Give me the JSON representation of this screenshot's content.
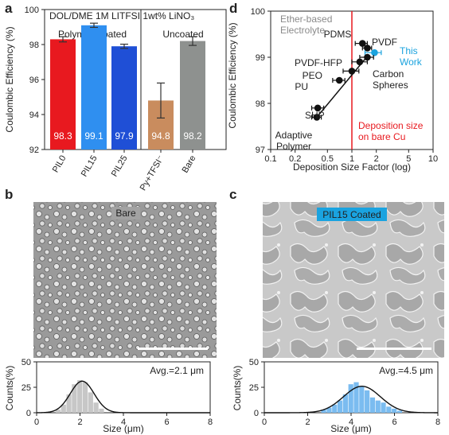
{
  "chart_data": [
    {
      "panel": "a",
      "type": "bar",
      "ylabel": "Coulombic Efficiency (%)",
      "ylim": [
        92,
        100
      ],
      "yticks": [
        92,
        94,
        96,
        98,
        100
      ],
      "header_left": "DOL/DME 1M LITFSI 1wt% LiNO₃",
      "group_left": "Polymer Coated",
      "group_right": "Uncoated",
      "categories": [
        "PIL0",
        "PIL15",
        "PIL25",
        "Py+TFSI⁻",
        "Bare"
      ],
      "values": [
        98.3,
        99.1,
        97.9,
        94.8,
        98.2
      ],
      "errors": [
        0.15,
        0.12,
        0.12,
        1.0,
        0.25
      ],
      "value_labels": [
        "98.3",
        "99.1",
        "97.9",
        "94.8",
        "98.2"
      ],
      "colors": [
        "#e8191f",
        "#2f8ff0",
        "#1f4fd6",
        "#c98c5e",
        "#8e918f"
      ]
    },
    {
      "panel": "d",
      "type": "scatter",
      "xlabel": "Deposition Size Factor (log)",
      "ylabel": "Coulombic Efficiency (%)",
      "xscale": "log",
      "xlim": [
        0.1,
        10
      ],
      "ylim": [
        97,
        100
      ],
      "xticks": [
        "0.1",
        "0.2",
        "0.5",
        "1",
        "2",
        "5",
        "10"
      ],
      "yticks": [
        97,
        98,
        99,
        100
      ],
      "top_note": "Ether-based Electrolyte",
      "vline_x": 1,
      "vline_note": "Deposition size on bare Cu",
      "points": [
        {
          "label": "PDMS",
          "x": 1.35,
          "y": 99.3,
          "xerr": [
            0.25,
            0.2
          ],
          "color": "#111111"
        },
        {
          "label": "PVDF",
          "x": 1.55,
          "y": 99.2,
          "xerr": [
            0.2,
            0.2
          ],
          "color": "#111111"
        },
        {
          "label": "This Work",
          "x": 1.9,
          "y": 99.1,
          "xerr": [
            0.45,
            0.4
          ],
          "color": "#1ba3de"
        },
        {
          "label": "Carbon Spheres",
          "x": 1.55,
          "y": 99.0,
          "xerr": [
            0.3,
            0.3
          ],
          "color": "#111111"
        },
        {
          "label": "PVDF-HFP",
          "x": 1.25,
          "y": 98.9,
          "xerr": [
            0.25,
            0.3
          ],
          "color": "#111111"
        },
        {
          "label": "PEO",
          "x": 1.0,
          "y": 98.7,
          "xerr": [
            0.22,
            0.22
          ],
          "color": "#111111"
        },
        {
          "label": "PU",
          "x": 0.7,
          "y": 98.5,
          "xerr": [
            0.12,
            0.12
          ],
          "color": "#111111"
        },
        {
          "label": "SHP",
          "x": 0.38,
          "y": 97.9,
          "xerr": [
            0.06,
            0.07
          ],
          "color": "#111111"
        },
        {
          "label": "Adaptive Polymer",
          "x": 0.37,
          "y": 97.7,
          "xerr": [
            0.05,
            0.05
          ],
          "color": "#111111"
        }
      ],
      "trend": [
        [
          0.37,
          97.7
        ],
        [
          1.6,
          99.05
        ]
      ]
    },
    {
      "panel": "b",
      "type": "bar",
      "micrograph_label": "Bare",
      "annotation": "Avg.=2.1 μm",
      "xlabel": "Size (μm)",
      "ylabel": "Counts(%)",
      "xlim": [
        0,
        8
      ],
      "ylim": [
        0,
        50
      ],
      "xticks": [
        0,
        2,
        4,
        6,
        8
      ],
      "yticks": [
        0,
        25,
        50
      ],
      "bin_width": 0.25,
      "bins": [
        1.0,
        1.25,
        1.5,
        1.75,
        2.0,
        2.25,
        2.5,
        2.75,
        3.0
      ],
      "values": [
        3,
        8,
        18,
        28,
        32,
        30,
        20,
        10,
        4
      ],
      "fit_mean": 2.1,
      "fit_sd": 0.55,
      "fit_peak": 31,
      "color": "#c7c7c7"
    },
    {
      "panel": "c",
      "type": "bar",
      "micrograph_label": "PIL15 Coated",
      "annotation": "Avg.=4.5 μm",
      "xlabel": "Size (μm)",
      "ylabel": "Counts(%)",
      "xlim": [
        0,
        8
      ],
      "ylim": [
        0,
        50
      ],
      "xticks": [
        0,
        2,
        4,
        6,
        8
      ],
      "yticks": [
        0,
        25,
        50
      ],
      "bin_width": 0.25,
      "bins": [
        2.75,
        3.0,
        3.25,
        3.5,
        3.75,
        4.0,
        4.25,
        4.5,
        4.75,
        5.0,
        5.25,
        5.5,
        5.75,
        6.0,
        6.25
      ],
      "values": [
        3,
        5,
        8,
        12,
        18,
        28,
        30,
        26,
        22,
        15,
        12,
        10,
        6,
        4,
        2
      ],
      "fit_mean": 4.5,
      "fit_sd": 0.85,
      "fit_peak": 26,
      "color": "#7bbcf0"
    }
  ],
  "panels": {
    "a": "a",
    "b": "b",
    "c": "c",
    "d": "d"
  }
}
